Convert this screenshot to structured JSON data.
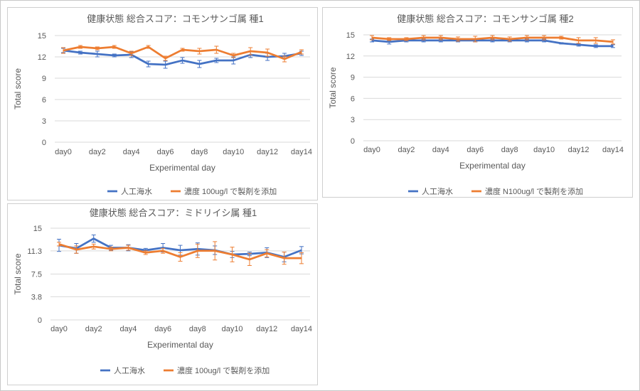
{
  "chart_data": [
    {
      "type": "line",
      "title": "健康状態 総合スコア：コモンサンゴ属 種1",
      "xlabel": "Experimental day",
      "ylabel": "Total score",
      "ylim": [
        0,
        15
      ],
      "yticks": [
        "0",
        "3",
        "6",
        "9",
        "12",
        "15"
      ],
      "tick_labels": [
        "day0",
        "day2",
        "day4",
        "day6",
        "day8",
        "day10",
        "day12",
        "day14"
      ],
      "grid": true,
      "legend": "bottom",
      "series": [
        {
          "name": "人工海水",
          "color": "#4472C4",
          "values": [
            12.9,
            12.6,
            12.4,
            12.2,
            12.3,
            11.0,
            10.9,
            11.5,
            11.0,
            11.5,
            11.5,
            12.3,
            12.0,
            12.1,
            12.5
          ],
          "errors": [
            0.3,
            0.2,
            0.4,
            0.2,
            0.4,
            0.4,
            0.5,
            0.4,
            0.5,
            0.3,
            0.5,
            0.4,
            0.5,
            0.4,
            0.3
          ]
        },
        {
          "name": "濃度 100ug/l で製剤を添加",
          "color": "#ED7D31",
          "values": [
            12.9,
            13.4,
            13.2,
            13.4,
            12.5,
            13.4,
            11.8,
            13.0,
            12.8,
            13.0,
            12.2,
            12.8,
            12.6,
            11.7,
            12.7
          ],
          "errors": [
            0.4,
            0.2,
            0.2,
            0.2,
            0.3,
            0.2,
            0.3,
            0.2,
            0.4,
            0.5,
            0.3,
            0.5,
            0.5,
            0.4,
            0.3
          ]
        }
      ]
    },
    {
      "type": "line",
      "title": "健康状態 総合スコア：コモンサンゴ属 種2",
      "xlabel": "Experimental day",
      "ylabel": "Total score",
      "ylim": [
        0,
        15
      ],
      "yticks": [
        "0",
        "3",
        "6",
        "9",
        "12",
        "15"
      ],
      "tick_labels": [
        "day0",
        "day2",
        "day4",
        "day6",
        "day8",
        "day10",
        "day12",
        "day14"
      ],
      "grid": true,
      "legend": "bottom",
      "series": [
        {
          "name": "人工海水",
          "color": "#4472C4",
          "values": [
            14.2,
            14.0,
            14.2,
            14.2,
            14.2,
            14.2,
            14.2,
            14.2,
            14.2,
            14.2,
            14.2,
            13.8,
            13.6,
            13.4,
            13.4
          ],
          "errors": [
            0.2,
            0.3,
            0.2,
            0.2,
            0.2,
            0.2,
            0.2,
            0.2,
            0.2,
            0.2,
            0.2,
            0.1,
            0.2,
            0.2,
            0.2
          ]
        },
        {
          "name": "濃度 N100ug/l で製剤を添加",
          "color": "#ED7D31",
          "values": [
            14.6,
            14.4,
            14.4,
            14.6,
            14.6,
            14.4,
            14.4,
            14.6,
            14.4,
            14.6,
            14.6,
            14.6,
            14.2,
            14.2,
            14.0
          ],
          "errors": [
            0.3,
            0.2,
            0.2,
            0.3,
            0.3,
            0.3,
            0.4,
            0.3,
            0.3,
            0.3,
            0.3,
            0.2,
            0.4,
            0.4,
            0.3
          ]
        }
      ]
    },
    {
      "type": "line",
      "title": "健康状態 総合スコア：ミドリイシ属 種1",
      "xlabel": "Experimental day",
      "ylabel": "Total score",
      "ylim": [
        0,
        15
      ],
      "yticks": [
        "0",
        "3.8",
        "7.5",
        "11.3",
        "15"
      ],
      "tick_labels": [
        "day0",
        "day2",
        "day4",
        "day6",
        "day8",
        "day10",
        "day12",
        "day14"
      ],
      "grid": true,
      "legend": "bottom",
      "series": [
        {
          "name": "人工海水",
          "color": "#4472C4",
          "values": [
            12.2,
            11.7,
            13.3,
            11.8,
            11.8,
            11.4,
            11.8,
            11.4,
            11.6,
            11.4,
            10.7,
            10.8,
            11.0,
            10.3,
            11.4
          ],
          "errors": [
            1.0,
            0.8,
            0.6,
            0.4,
            0.5,
            0.3,
            0.7,
            0.8,
            1.0,
            0.7,
            0.5,
            0.3,
            0.8,
            0.8,
            0.6
          ]
        },
        {
          "name": "濃度 100ug/l で製剤を添加",
          "color": "#ED7D31",
          "values": [
            12.4,
            11.5,
            12.0,
            11.6,
            11.8,
            11.0,
            11.3,
            10.3,
            11.3,
            11.3,
            10.7,
            9.9,
            10.9,
            10.1,
            10.1
          ],
          "errors": [
            0.3,
            0.6,
            0.4,
            0.3,
            0.4,
            0.3,
            0.4,
            0.7,
            1.1,
            1.5,
            1.2,
            1.0,
            0.6,
            1.0,
            0.9
          ]
        }
      ]
    }
  ]
}
